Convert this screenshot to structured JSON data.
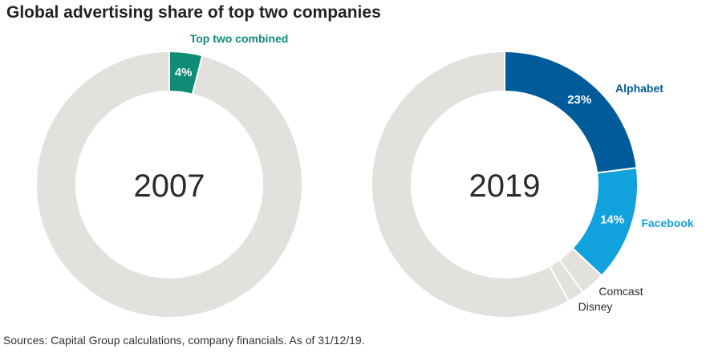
{
  "title": "Global advertising share of top two companies",
  "source": "Sources: Capital Group calculations, company financials. As of 31/12/19.",
  "colors": {
    "rest": "#e3e1dd",
    "top_two": "#0e8c75",
    "alphabet": "#005b9b",
    "facebook": "#11a1dd",
    "small": "#e3e1dd"
  },
  "chart_data": [
    {
      "type": "pie",
      "variant": "donut",
      "center_label": "2007",
      "slices": [
        {
          "name": "Top two combined",
          "value": 4,
          "label": "4%",
          "color": "#0e8c75"
        },
        {
          "name": "",
          "value": 96,
          "label": "",
          "color": "#e3e1dd"
        }
      ]
    },
    {
      "type": "pie",
      "variant": "donut",
      "center_label": "2019",
      "slices": [
        {
          "name": "Alphabet",
          "value": 23,
          "label": "23%",
          "color": "#005b9b"
        },
        {
          "name": "Facebook",
          "value": 14,
          "label": "14%",
          "color": "#11a1dd"
        },
        {
          "name": "Comcast",
          "value": 3,
          "label": "",
          "color": "#e3e1dd"
        },
        {
          "name": "Disney",
          "value": 2,
          "label": "",
          "color": "#e3e1dd"
        },
        {
          "name": "",
          "value": 58,
          "label": "",
          "color": "#e3e1dd"
        }
      ]
    }
  ]
}
